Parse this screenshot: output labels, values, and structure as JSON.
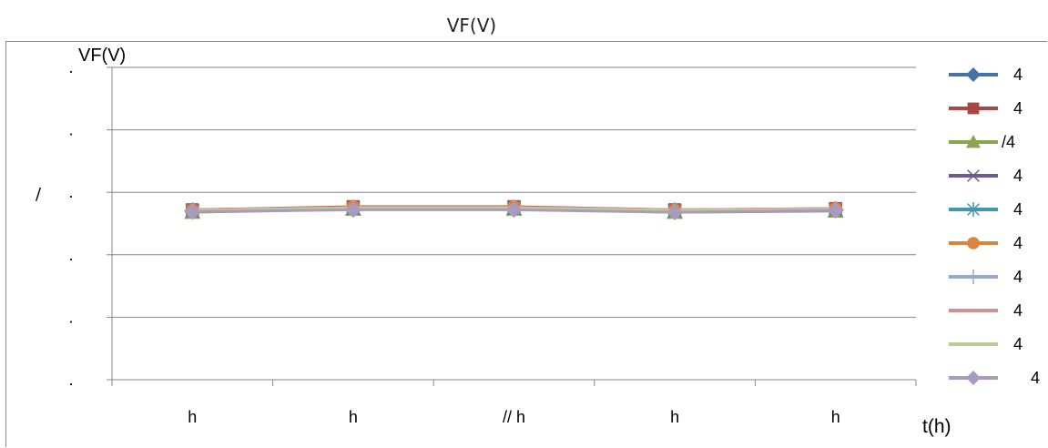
{
  "chart_data": {
    "type": "line",
    "title": "VF(V)",
    "ylabel": "VF(V)",
    "xlabel": "t(h)",
    "ylabel_side_mark": "/",
    "yticks": [
      ".",
      ".",
      ".",
      ".",
      ".",
      "."
    ],
    "categories": [
      "h",
      "h",
      "// h",
      "h",
      "h"
    ],
    "ylim": [
      0,
      5
    ],
    "grid": true,
    "legend_position": "right",
    "series": [
      {
        "name": "4",
        "color": "#4572a7",
        "marker": "diamond",
        "values": [
          2.7,
          2.75,
          2.75,
          2.7,
          2.72
        ]
      },
      {
        "name": "4",
        "color": "#aa4643",
        "marker": "square",
        "values": [
          2.72,
          2.77,
          2.77,
          2.72,
          2.74
        ]
      },
      {
        "name": "/4",
        "color": "#89a54e",
        "marker": "triangle",
        "values": [
          2.68,
          2.73,
          2.73,
          2.68,
          2.7
        ]
      },
      {
        "name": "4",
        "color": "#71588f",
        "marker": "x",
        "values": [
          2.7,
          2.74,
          2.74,
          2.7,
          2.72
        ]
      },
      {
        "name": "4",
        "color": "#4198af",
        "marker": "star",
        "values": [
          2.71,
          2.75,
          2.75,
          2.71,
          2.73
        ]
      },
      {
        "name": "4",
        "color": "#db843d",
        "marker": "circle",
        "values": [
          2.71,
          2.76,
          2.76,
          2.71,
          2.73
        ]
      },
      {
        "name": "4",
        "color": "#93a9cf",
        "marker": "plus",
        "values": [
          2.7,
          2.74,
          2.74,
          2.7,
          2.72
        ]
      },
      {
        "name": "4",
        "color": "#d19392",
        "marker": "none",
        "values": [
          2.72,
          2.76,
          2.76,
          2.72,
          2.74
        ]
      },
      {
        "name": "4",
        "color": "#b9cd96",
        "marker": "none",
        "values": [
          2.71,
          2.75,
          2.75,
          2.71,
          2.73
        ]
      },
      {
        "name": "4",
        "color": "#a99bbd",
        "marker": "diamond",
        "values": [
          2.69,
          2.72,
          2.72,
          2.68,
          2.71
        ]
      }
    ]
  }
}
